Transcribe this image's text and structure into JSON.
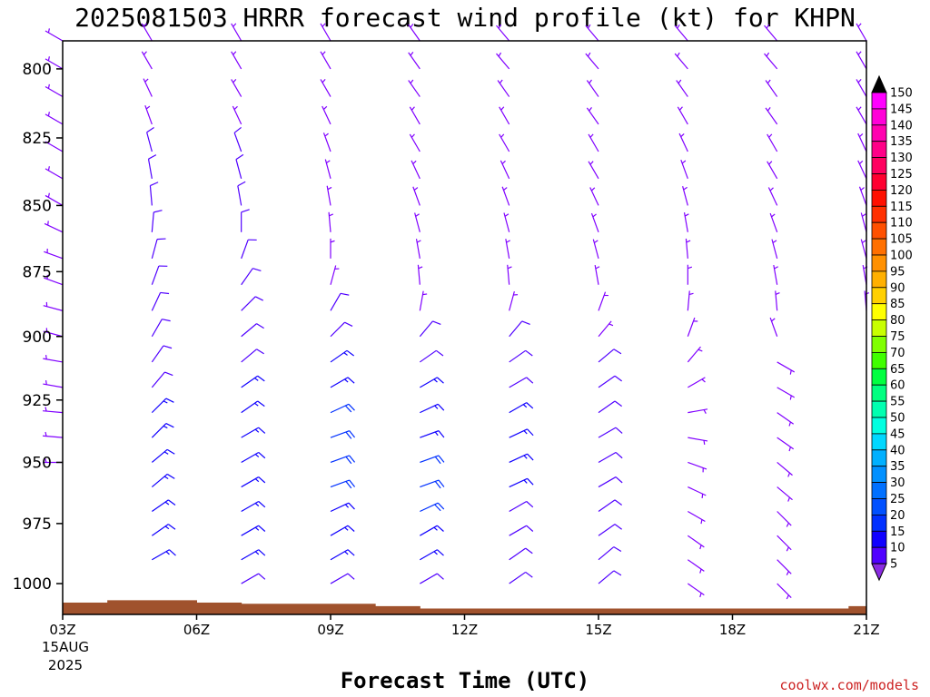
{
  "chart_data": {
    "type": "wind-barb-profile",
    "title": "2025081503 HRRR forecast wind profile (kt) for KHPN",
    "xlabel": "Forecast Time (UTC)",
    "x_ticks": [
      "03Z",
      "06Z",
      "09Z",
      "12Z",
      "15Z",
      "18Z",
      "21Z"
    ],
    "x_tick_hours": [
      3,
      6,
      9,
      12,
      15,
      18,
      21
    ],
    "x_date": [
      "15AUG",
      "2025"
    ],
    "xlim_hours": [
      3,
      21
    ],
    "y_ticks": [
      800,
      825,
      850,
      875,
      900,
      925,
      950,
      975,
      1000
    ],
    "ylim_hpa": [
      790,
      1013
    ],
    "credit": "coolwx.com/models",
    "barb_levels_hpa": [
      790,
      800,
      810,
      820,
      830,
      840,
      850,
      860,
      870,
      880,
      890,
      900,
      910,
      920,
      930,
      940,
      950,
      960,
      970,
      980,
      990,
      1000
    ],
    "columns": [
      {
        "hour": 3,
        "bottom_hpa": 950,
        "dir": [
          300,
          300,
          300,
          300,
          300,
          300,
          300,
          295,
          290,
          290,
          285,
          285,
          280,
          280,
          275,
          275,
          270
        ],
        "spd": [
          5,
          5,
          5,
          5,
          5,
          5,
          5,
          5,
          5,
          5,
          5,
          5,
          5,
          5,
          5,
          5,
          5
        ]
      },
      {
        "hour": 5,
        "bottom_hpa": 995,
        "dir": [
          330,
          330,
          335,
          340,
          345,
          350,
          355,
          5,
          15,
          20,
          25,
          30,
          35,
          40,
          45,
          45,
          50,
          50,
          55,
          55,
          60
        ],
        "spd": [
          5,
          5,
          5,
          5,
          10,
          10,
          10,
          10,
          10,
          10,
          10,
          10,
          10,
          10,
          15,
          15,
          15,
          15,
          15,
          15,
          15
        ]
      },
      {
        "hour": 7,
        "bottom_hpa": 1000,
        "dir": [
          330,
          330,
          330,
          335,
          340,
          345,
          350,
          0,
          20,
          35,
          45,
          50,
          50,
          55,
          55,
          60,
          60,
          60,
          60,
          60,
          60,
          60
        ],
        "spd": [
          5,
          5,
          5,
          5,
          10,
          10,
          10,
          10,
          10,
          10,
          10,
          10,
          10,
          15,
          15,
          15,
          15,
          15,
          15,
          15,
          15,
          10
        ]
      },
      {
        "hour": 9,
        "bottom_hpa": 1000,
        "dir": [
          330,
          330,
          330,
          335,
          340,
          345,
          350,
          355,
          0,
          15,
          30,
          45,
          55,
          60,
          65,
          70,
          70,
          70,
          65,
          60,
          60,
          60
        ],
        "spd": [
          5,
          5,
          5,
          5,
          5,
          5,
          5,
          5,
          5,
          5,
          10,
          10,
          15,
          15,
          20,
          20,
          20,
          20,
          15,
          15,
          15,
          10
        ]
      },
      {
        "hour": 11,
        "bottom_hpa": 1000,
        "dir": [
          325,
          325,
          325,
          330,
          330,
          335,
          340,
          345,
          350,
          355,
          10,
          40,
          55,
          60,
          65,
          70,
          70,
          70,
          65,
          60,
          60,
          60
        ],
        "spd": [
          5,
          5,
          5,
          5,
          5,
          5,
          5,
          5,
          5,
          5,
          5,
          10,
          10,
          15,
          15,
          15,
          20,
          20,
          20,
          15,
          15,
          10
        ]
      },
      {
        "hour": 13,
        "bottom_hpa": 1000,
        "dir": [
          320,
          320,
          325,
          330,
          330,
          335,
          340,
          345,
          350,
          355,
          15,
          40,
          55,
          60,
          60,
          65,
          65,
          65,
          60,
          60,
          55,
          55
        ],
        "spd": [
          5,
          5,
          5,
          5,
          5,
          5,
          5,
          5,
          5,
          5,
          5,
          10,
          10,
          10,
          15,
          15,
          15,
          15,
          10,
          10,
          10,
          10
        ]
      },
      {
        "hour": 15,
        "bottom_hpa": 1000,
        "dir": [
          320,
          320,
          325,
          325,
          330,
          330,
          335,
          340,
          345,
          350,
          20,
          40,
          50,
          55,
          55,
          60,
          60,
          60,
          55,
          55,
          50,
          50
        ],
        "spd": [
          5,
          5,
          5,
          5,
          5,
          5,
          5,
          5,
          5,
          5,
          5,
          5,
          10,
          10,
          10,
          10,
          10,
          10,
          10,
          10,
          10,
          10
        ]
      },
      {
        "hour": 17,
        "bottom_hpa": 1005,
        "dir": [
          320,
          320,
          325,
          330,
          335,
          340,
          345,
          350,
          355,
          0,
          5,
          20,
          40,
          60,
          80,
          100,
          110,
          115,
          120,
          125,
          125,
          125,
          125
        ],
        "spd": [
          5,
          5,
          5,
          5,
          5,
          5,
          5,
          5,
          5,
          5,
          5,
          5,
          5,
          5,
          5,
          5,
          5,
          5,
          5,
          5,
          5,
          5,
          5
        ]
      },
      {
        "hour": 19,
        "bottom_hpa": 1005,
        "dir": [
          320,
          320,
          325,
          325,
          330,
          330,
          335,
          340,
          345,
          350,
          355,
          340,
          120,
          120,
          125,
          125,
          130,
          130,
          135,
          135,
          135,
          135,
          135
        ],
        "spd": [
          5,
          5,
          5,
          5,
          5,
          5,
          5,
          5,
          5,
          5,
          5,
          5,
          5,
          5,
          5,
          5,
          5,
          5,
          5,
          5,
          5,
          5,
          5
        ]
      },
      {
        "hour": 21,
        "bottom_hpa": 895,
        "dir": [
          330,
          330,
          330,
          330,
          335,
          335,
          340,
          345,
          345,
          350,
          355,
          0
        ],
        "spd": [
          5,
          5,
          5,
          5,
          5,
          5,
          5,
          5,
          5,
          5,
          5,
          5
        ]
      }
    ],
    "terrain_hpa": [
      {
        "from": 3,
        "to": 4,
        "p": 1008
      },
      {
        "from": 4,
        "to": 6,
        "p": 1007
      },
      {
        "from": 6,
        "to": 7,
        "p": 1008
      },
      {
        "from": 7,
        "to": 10,
        "p": 1008.5
      },
      {
        "from": 10,
        "to": 11,
        "p": 1009.5
      },
      {
        "from": 11,
        "to": 20.6,
        "p": 1010.5
      },
      {
        "from": 20.6,
        "to": 21,
        "p": 1009.5
      }
    ],
    "colorbar": {
      "labels": [
        150,
        145,
        140,
        135,
        130,
        125,
        120,
        115,
        110,
        105,
        100,
        95,
        90,
        85,
        80,
        75,
        70,
        65,
        60,
        55,
        50,
        45,
        40,
        35,
        30,
        25,
        20,
        15,
        10,
        5
      ],
      "colors": [
        "#ff00ff",
        "#ff00d8",
        "#ff00b0",
        "#ff0088",
        "#ff0060",
        "#ff0030",
        "#ff1000",
        "#ff3000",
        "#ff5000",
        "#ff7000",
        "#ff9000",
        "#ffb000",
        "#ffd000",
        "#ffff00",
        "#c8ff00",
        "#80ff00",
        "#40ff00",
        "#00ff40",
        "#00ff80",
        "#00ffb0",
        "#00ffe0",
        "#00d8ff",
        "#00b0ff",
        "#0090ff",
        "#0070ff",
        "#0050ff",
        "#0030ff",
        "#1000ff",
        "#5000ff",
        "#8000ff"
      ],
      "top_color": "#000000",
      "bottom_color": "#8a2be2"
    }
  }
}
